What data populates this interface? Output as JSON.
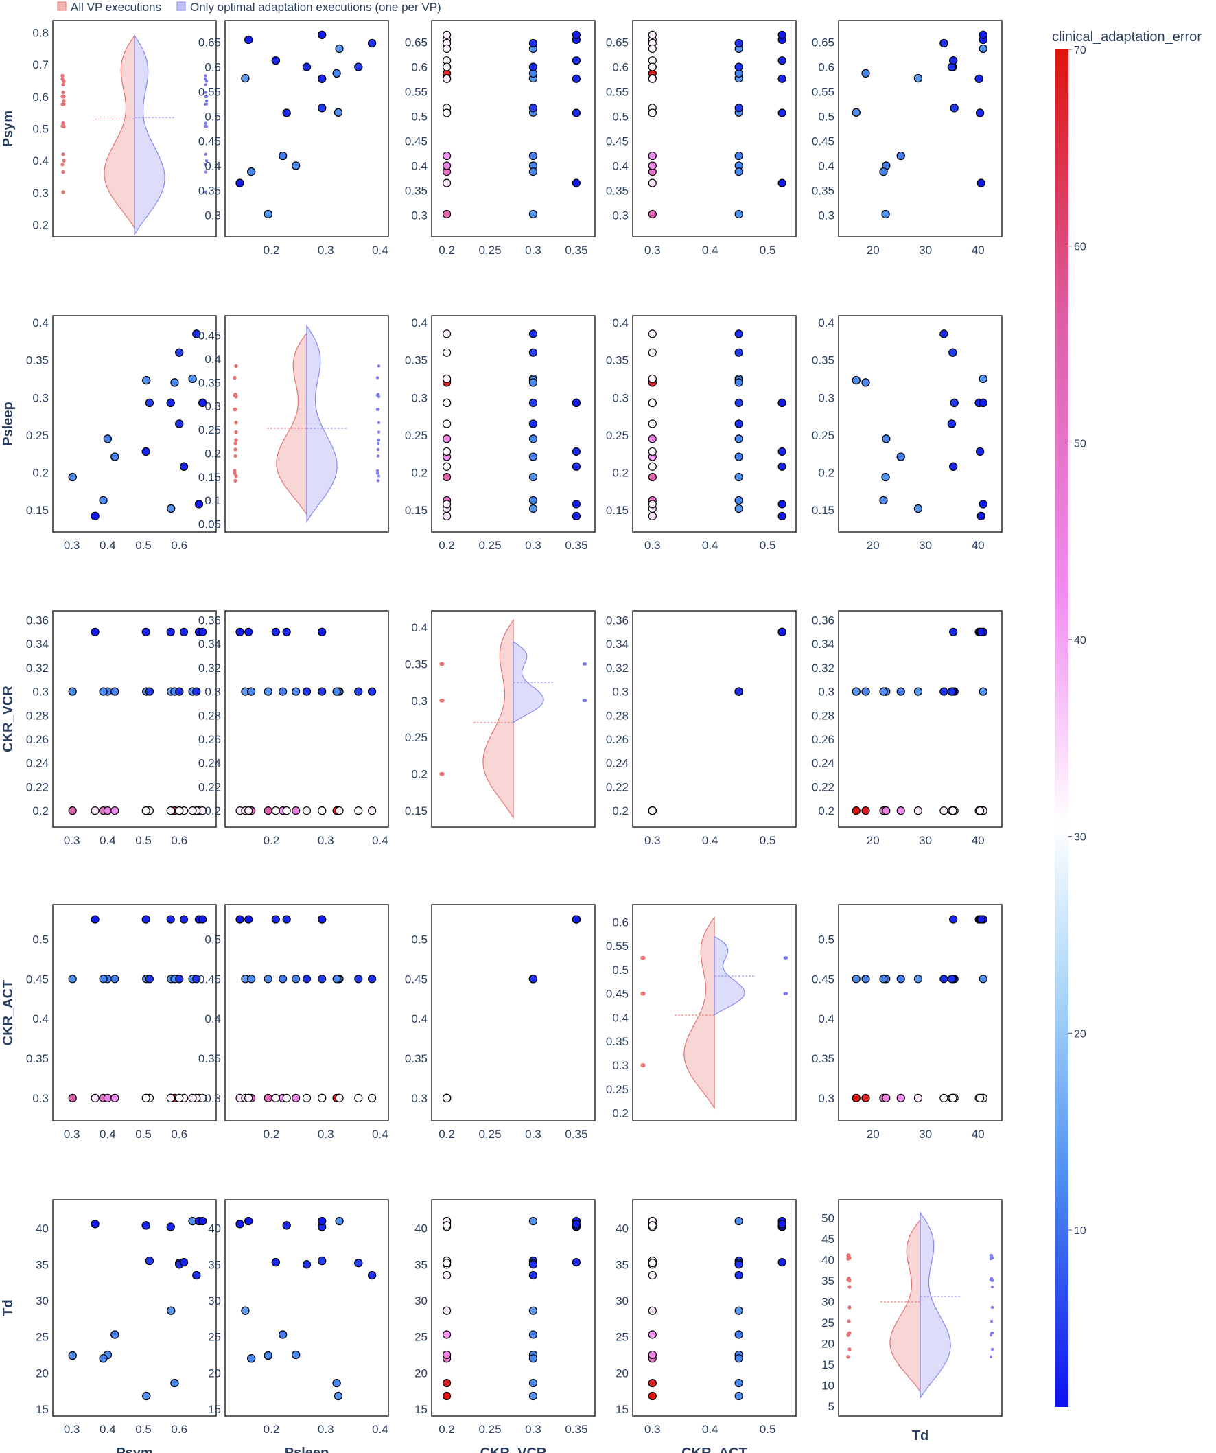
{
  "chart_data": {
    "type": "scatter",
    "title": "",
    "legend": {
      "position": "top-left",
      "items": [
        {
          "label": "All VP executions",
          "color": "#e57373"
        },
        {
          "label": "Only optimal adaptation executions (one per VP)",
          "color": "#8888f0"
        }
      ]
    },
    "colorbar": {
      "title": "clinical_adaptation_error",
      "ticks": [
        10,
        20,
        30,
        40,
        50,
        60,
        70
      ],
      "range": [
        1,
        70
      ],
      "colorscale": [
        [
          0,
          "#0d11f0"
        ],
        [
          0.17,
          "#4f8ff0"
        ],
        [
          0.3,
          "#a8d4f7"
        ],
        [
          0.43,
          "#ffffff"
        ],
        [
          0.6,
          "#ef8cf0"
        ],
        [
          0.8,
          "#db5fa5"
        ],
        [
          1,
          "#e0140e"
        ]
      ]
    },
    "variables": [
      {
        "name": "Psym",
        "range": [
          0.18,
          0.82
        ],
        "ticks": [
          "0.2",
          "0.3",
          "0.4",
          "0.5",
          "0.6",
          "0.7",
          "0.8"
        ]
      },
      {
        "name": "Psleep",
        "range": [
          0.045,
          0.48
        ],
        "ticks": [
          "0.05",
          "0.1",
          "0.15",
          "0.2",
          "0.25",
          "0.3",
          "0.35",
          "0.4",
          "0.45"
        ]
      },
      {
        "name": "CKR_VCR",
        "range": [
          0.135,
          0.415
        ],
        "ticks": [
          "0.15",
          "0.2",
          "0.25",
          "0.3",
          "0.35",
          "0.4"
        ]
      },
      {
        "name": "CKR_ACT",
        "range": [
          0.195,
          0.625
        ],
        "ticks": [
          "0.2",
          "0.25",
          "0.3",
          "0.35",
          "0.4",
          "0.45",
          "0.5",
          "0.55",
          "0.6"
        ]
      },
      {
        "name": "Td",
        "range": [
          4,
          53
        ],
        "ticks": [
          "5",
          "10",
          "15",
          "20",
          "25",
          "30",
          "35",
          "40",
          "45",
          "50"
        ]
      }
    ],
    "axes": {
      "Psym": {
        "scatter": [
          0.27,
          0.68
        ],
        "ticks": [
          "0.3",
          "0.35",
          "0.4",
          "0.45",
          "0.5",
          "0.55",
          "0.6",
          "0.65"
        ],
        "xticks": [
          "0.3",
          "0.4",
          "0.5",
          "0.6"
        ]
      },
      "Psleep": {
        "scatter": [
          0.13,
          0.4
        ],
        "ticks": [
          "0.15",
          "0.2",
          "0.25",
          "0.3",
          "0.35",
          "0.4"
        ],
        "xticks": [
          "0.2",
          "0.3",
          "0.4"
        ]
      },
      "CKR_VCR": {
        "scatter": [
          0.192,
          0.362
        ],
        "ticks": [
          "0.2",
          "0.22",
          "0.24",
          "0.26",
          "0.28",
          "0.3",
          "0.32",
          "0.34",
          "0.36"
        ],
        "xticks": [
          "0.2",
          "0.25",
          "0.3",
          "0.35"
        ]
      },
      "CKR_ACT": {
        "scatter": [
          0.28,
          0.535
        ],
        "ticks": [
          "0.3",
          "0.35",
          "0.4",
          "0.45",
          "0.5"
        ],
        "xticks": [
          "0.3",
          "0.4",
          "0.5"
        ]
      },
      "Td": {
        "scatter": [
          15,
          43
        ],
        "ticks": [
          "15",
          "20",
          "25",
          "30",
          "35",
          "40"
        ],
        "xticks": [
          "20",
          "30",
          "40"
        ]
      }
    },
    "vp_optimal": [
      {
        "Psym": 0.655,
        "Psleep": 0.158,
        "CKR_VCR": 0.35,
        "CKR_ACT": 0.525,
        "Td": 41.0,
        "error": 2
      },
      {
        "Psym": 0.613,
        "Psleep": 0.208,
        "CKR_VCR": 0.35,
        "CKR_ACT": 0.525,
        "Td": 35.3,
        "error": 3
      },
      {
        "Psym": 0.6,
        "Psleep": 0.265,
        "CKR_VCR": 0.3,
        "CKR_ACT": 0.45,
        "Td": 35.0,
        "error": 4
      },
      {
        "Psym": 0.576,
        "Psleep": 0.293,
        "CKR_VCR": 0.35,
        "CKR_ACT": 0.525,
        "Td": 40.2,
        "error": 3
      },
      {
        "Psym": 0.517,
        "Psleep": 0.293,
        "CKR_VCR": 0.3,
        "CKR_ACT": 0.45,
        "Td": 35.5,
        "error": 5
      },
      {
        "Psym": 0.507,
        "Psleep": 0.228,
        "CKR_VCR": 0.35,
        "CKR_ACT": 0.525,
        "Td": 40.4,
        "error": 3
      },
      {
        "Psym": 0.665,
        "Psleep": 0.293,
        "CKR_VCR": 0.35,
        "CKR_ACT": 0.525,
        "Td": 41.0,
        "error": 2
      },
      {
        "Psym": 0.365,
        "Psleep": 0.142,
        "CKR_VCR": 0.35,
        "CKR_ACT": 0.525,
        "Td": 40.6,
        "error": 2
      },
      {
        "Psym": 0.648,
        "Psleep": 0.385,
        "CKR_VCR": 0.3,
        "CKR_ACT": 0.45,
        "Td": 33.5,
        "error": 4
      },
      {
        "Psym": 0.6,
        "Psleep": 0.36,
        "CKR_VCR": 0.3,
        "CKR_ACT": 0.45,
        "Td": 35.2,
        "error": 5
      },
      {
        "Psym": 0.637,
        "Psleep": 0.325,
        "CKR_VCR": 0.3,
        "CKR_ACT": 0.45,
        "Td": 41.0,
        "error": 13
      },
      {
        "Psym": 0.587,
        "Psleep": 0.32,
        "CKR_VCR": 0.3,
        "CKR_ACT": 0.45,
        "Td": 18.6,
        "error": 12
      },
      {
        "Psym": 0.508,
        "Psleep": 0.323,
        "CKR_VCR": 0.3,
        "CKR_ACT": 0.45,
        "Td": 16.8,
        "error": 13
      },
      {
        "Psym": 0.42,
        "Psleep": 0.221,
        "CKR_VCR": 0.3,
        "CKR_ACT": 0.45,
        "Td": 25.3,
        "error": 11
      },
      {
        "Psym": 0.4,
        "Psleep": 0.245,
        "CKR_VCR": 0.3,
        "CKR_ACT": 0.45,
        "Td": 22.5,
        "error": 12
      },
      {
        "Psym": 0.388,
        "Psleep": 0.163,
        "CKR_VCR": 0.3,
        "CKR_ACT": 0.45,
        "Td": 22.0,
        "error": 12
      },
      {
        "Psym": 0.302,
        "Psleep": 0.194,
        "CKR_VCR": 0.3,
        "CKR_ACT": 0.45,
        "Td": 22.4,
        "error": 13
      },
      {
        "Psym": 0.577,
        "Psleep": 0.152,
        "CKR_VCR": 0.3,
        "CKR_ACT": 0.45,
        "Td": 28.6,
        "error": 14
      }
    ],
    "vp_other": [
      {
        "Psym": 0.655,
        "Psleep": 0.158,
        "Td": 41.0,
        "error": 32
      },
      {
        "Psym": 0.613,
        "Psleep": 0.208,
        "Td": 35.3,
        "error": 31
      },
      {
        "Psym": 0.6,
        "Psleep": 0.265,
        "Td": 35.0,
        "error": 31
      },
      {
        "Psym": 0.576,
        "Psleep": 0.293,
        "Td": 40.2,
        "error": 32
      },
      {
        "Psym": 0.517,
        "Psleep": 0.293,
        "Td": 35.5,
        "error": 31
      },
      {
        "Psym": 0.507,
        "Psleep": 0.228,
        "Td": 40.4,
        "error": 31
      },
      {
        "Psym": 0.665,
        "Psleep": 0.293,
        "Td": 41.0,
        "error": 32
      },
      {
        "Psym": 0.365,
        "Psleep": 0.142,
        "Td": 40.6,
        "error": 33
      },
      {
        "Psym": 0.648,
        "Psleep": 0.385,
        "Td": 33.5,
        "error": 32
      },
      {
        "Psym": 0.6,
        "Psleep": 0.36,
        "Td": 35.2,
        "error": 31
      },
      {
        "Psym": 0.637,
        "Psleep": 0.325,
        "Td": 41.0,
        "error": 32
      },
      {
        "Psym": 0.587,
        "Psleep": 0.32,
        "Td": 18.6,
        "error": 68
      },
      {
        "Psym": 0.508,
        "Psleep": 0.323,
        "Td": 16.8,
        "error": 70
      },
      {
        "Psym": 0.42,
        "Psleep": 0.221,
        "Td": 25.3,
        "error": 42
      },
      {
        "Psym": 0.4,
        "Psleep": 0.245,
        "Td": 22.5,
        "error": 45
      },
      {
        "Psym": 0.388,
        "Psleep": 0.163,
        "Td": 22.0,
        "error": 50
      },
      {
        "Psym": 0.302,
        "Psleep": 0.194,
        "Td": 22.4,
        "error": 55
      },
      {
        "Psym": 0.577,
        "Psleep": 0.152,
        "Td": 28.6,
        "error": 33
      }
    ],
    "violins": {
      "Psym": {
        "all_median": 0.53,
        "opt_median": 0.535,
        "range": [
          0.19,
          0.79
        ],
        "opt_range": [
          0.17,
          0.79
        ]
      },
      "Psleep": {
        "all_median": 0.253,
        "opt_median": 0.253,
        "range": [
          0.07,
          0.455
        ],
        "opt_range": [
          0.055,
          0.47
        ]
      },
      "CKR_VCR": {
        "all_median": 0.27,
        "opt_median": 0.325,
        "range": [
          0.14,
          0.41
        ],
        "opt_range": [
          0.27,
          0.38
        ]
      },
      "CKR_ACT": {
        "all_median": 0.405,
        "opt_median": 0.487,
        "range": [
          0.21,
          0.61
        ],
        "opt_range": [
          0.405,
          0.57
        ]
      },
      "Td": {
        "all_median": 29.9,
        "opt_median": 31.2,
        "range": [
          8.5,
          49.5
        ],
        "opt_range": [
          7,
          51.2
        ]
      }
    }
  }
}
